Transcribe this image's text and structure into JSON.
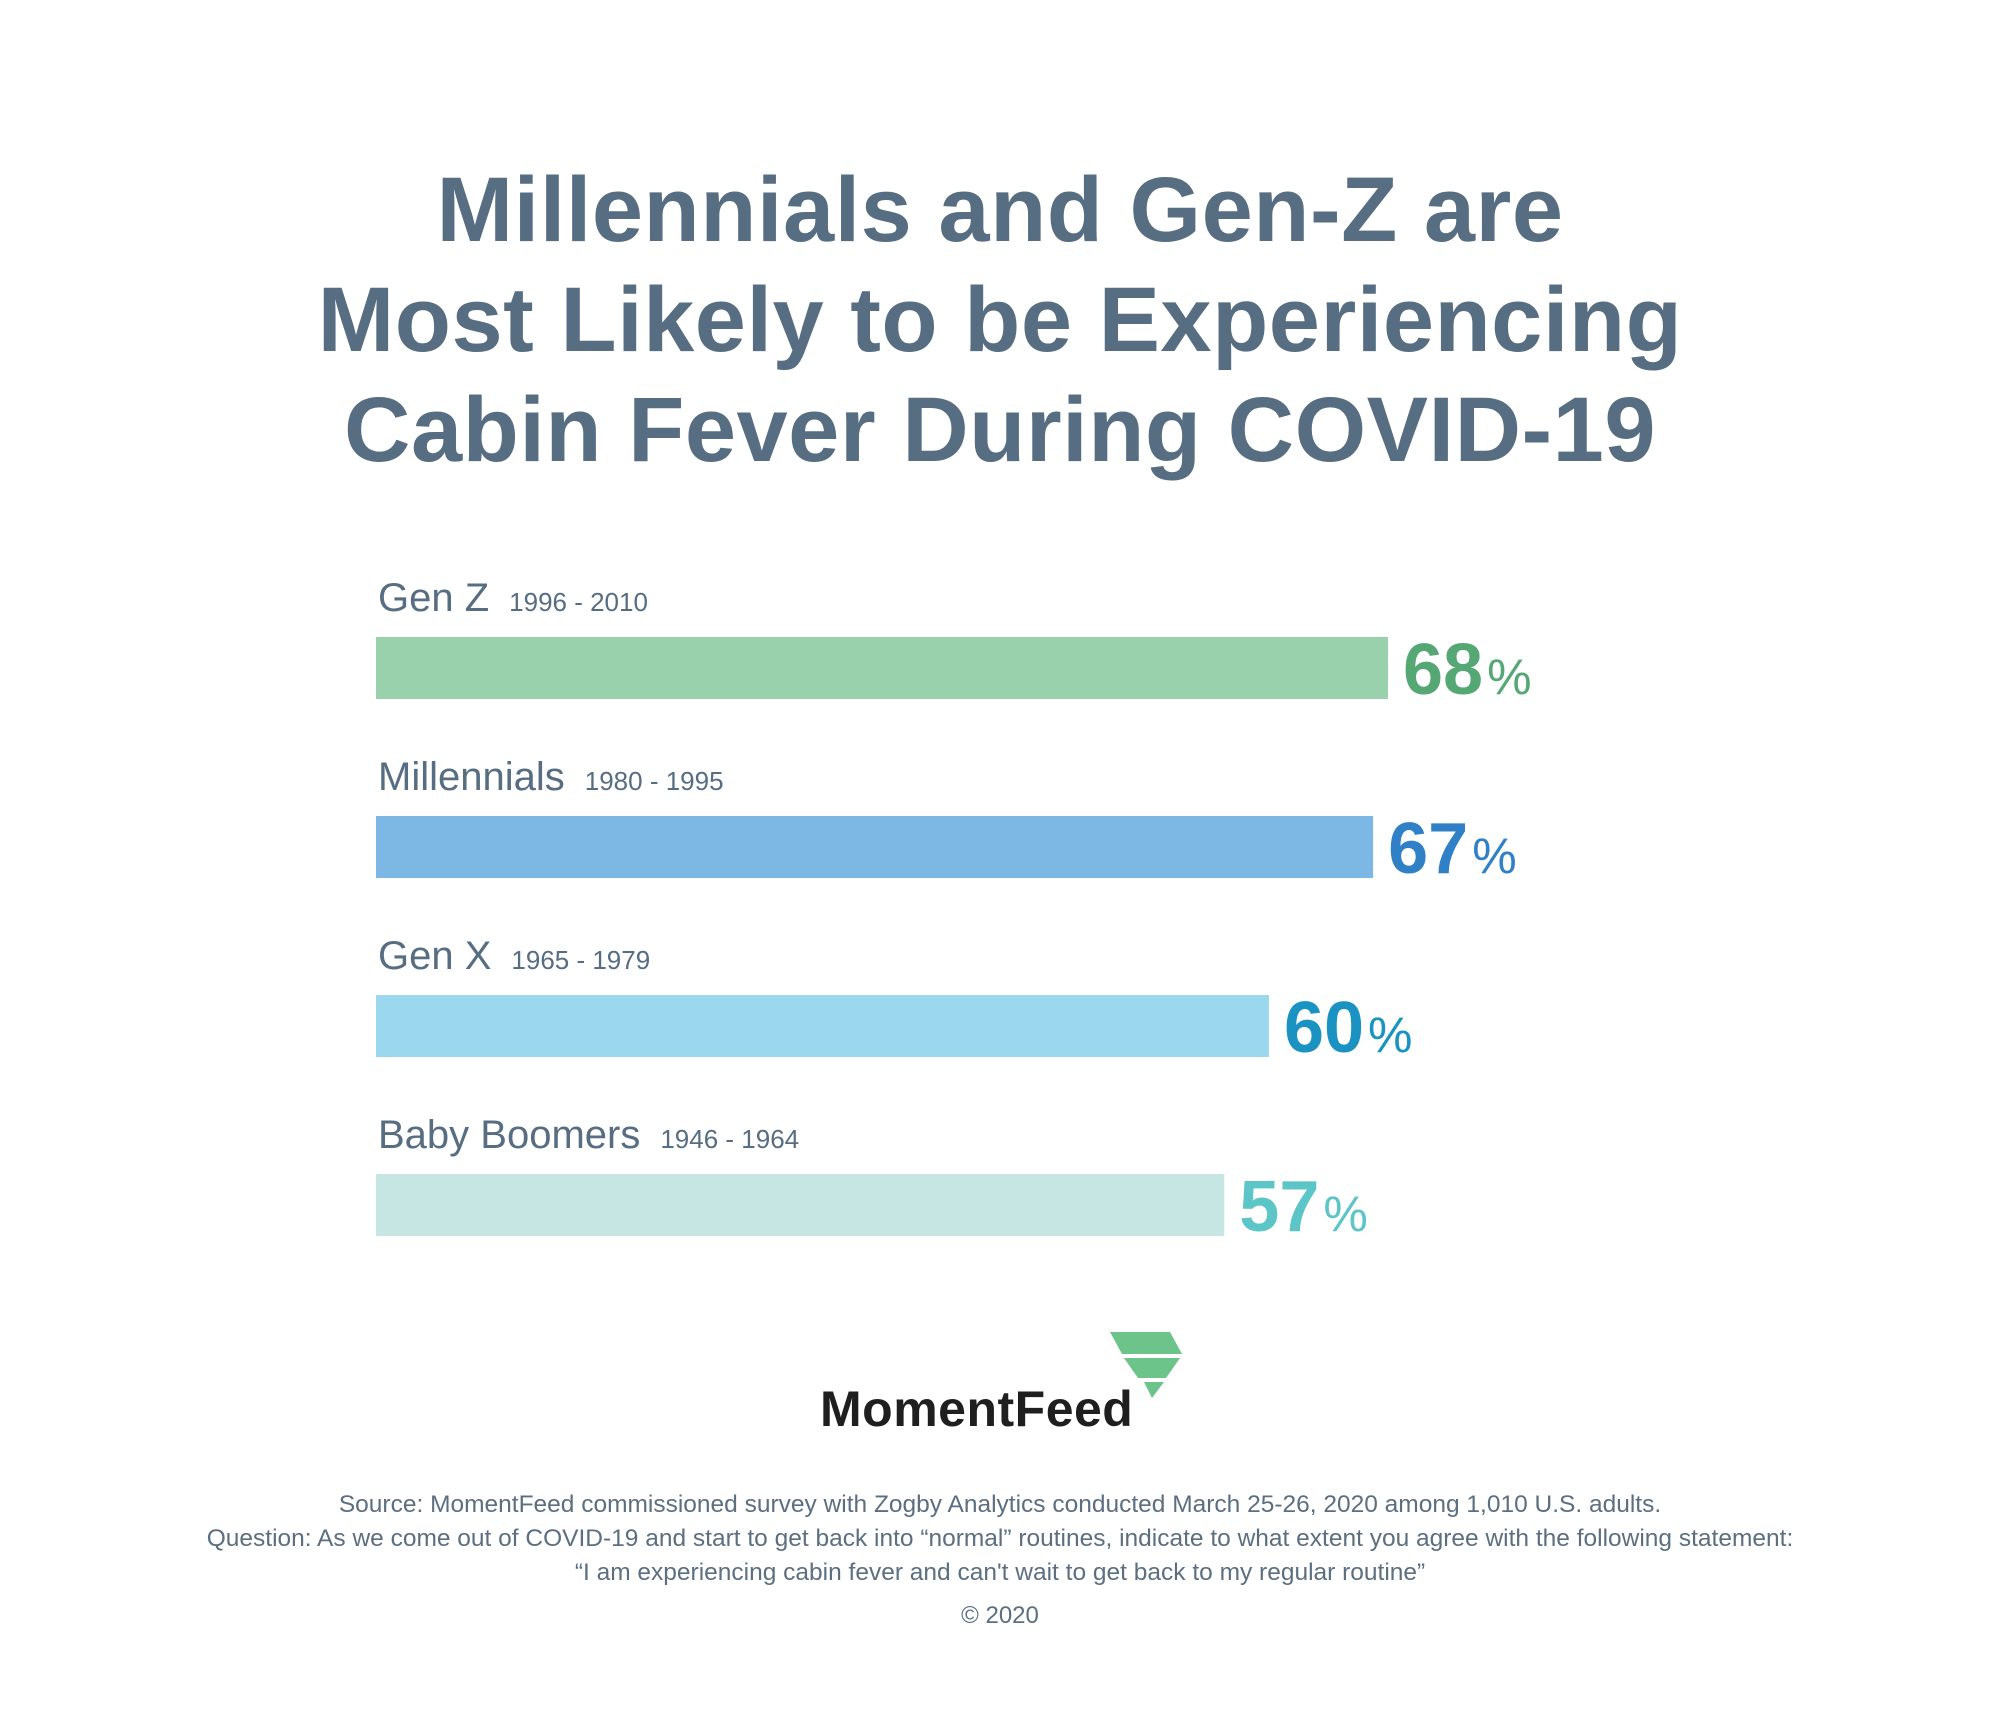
{
  "title": {
    "line1": "Millennials and Gen-Z are",
    "line2": "Most Likely to be Experiencing",
    "line3": "Cabin Fever During COVID-19"
  },
  "chart_data": {
    "type": "bar",
    "orientation": "horizontal",
    "title": "Millennials and Gen-Z are Most Likely to be Experiencing Cabin Fever During COVID-19",
    "categories": [
      "Gen Z",
      "Millennials",
      "Gen X",
      "Baby Boomers"
    ],
    "sublabels": [
      "1996 - 2010",
      "1980 - 1995",
      "1965 - 1979",
      "1946 - 1964"
    ],
    "values": [
      68,
      67,
      60,
      57
    ],
    "unit": "%",
    "bar_colors": [
      "#98d1ab",
      "#7db8e5",
      "#9bd8ef",
      "#c5e6e2"
    ],
    "value_colors": [
      "#55a774",
      "#2f80c6",
      "#1a93c3",
      "#5cc5c8"
    ],
    "label_color": "#566d82",
    "grid": false,
    "legend": "none"
  },
  "logo": {
    "text": "MomentFeed",
    "mark_color": "#6cc48a"
  },
  "footer": {
    "source": "Source: MomentFeed commissioned survey with Zogby Analytics conducted March 25-26, 2020 among 1,010 U.S. adults.",
    "question": "Question: As we come out of COVID-19 and start to get back into “normal” routines, indicate to what extent you agree with the following statement:",
    "statement": "“I am experiencing cabin fever and can't wait to get back to my regular routine”",
    "copyright": "© 2020"
  }
}
